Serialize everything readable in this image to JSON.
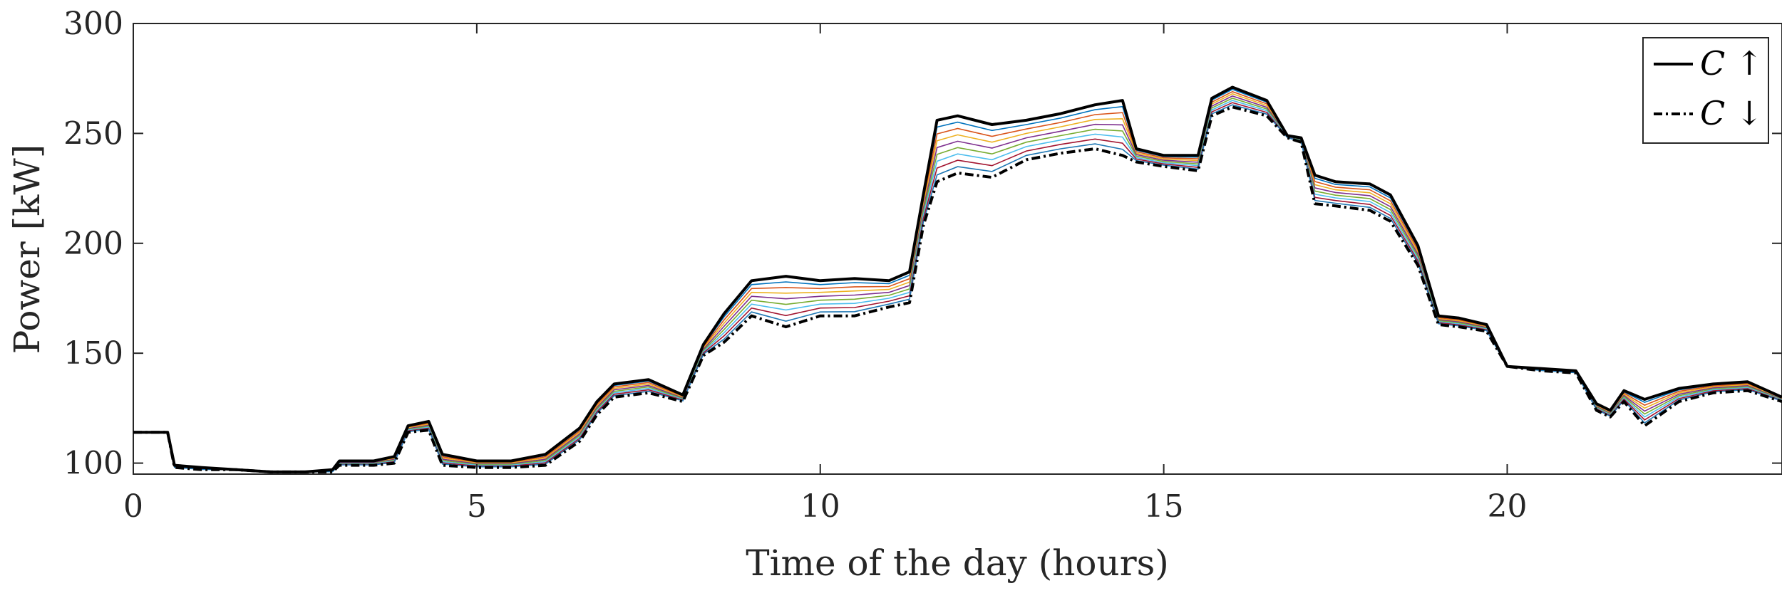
{
  "chart_data": {
    "type": "line",
    "title": "",
    "xlabel": "Time of the day (hours)",
    "ylabel": "Power [kW]",
    "xlim": [
      0,
      24
    ],
    "ylim": [
      95,
      300
    ],
    "xticks": [
      0,
      5,
      10,
      15,
      20
    ],
    "yticks": [
      100,
      150,
      200,
      250,
      300
    ],
    "grid": false,
    "legend_position": "top-right",
    "x": [
      0,
      0.5,
      0.6,
      1,
      1.5,
      2,
      2.5,
      2.9,
      3,
      3.5,
      3.8,
      4,
      4.3,
      4.5,
      5,
      5.5,
      6,
      6.5,
      6.75,
      7,
      7.5,
      8,
      8.3,
      8.6,
      9,
      9.5,
      10,
      10.5,
      11,
      11.3,
      11.5,
      11.7,
      12,
      12.5,
      13,
      13.5,
      14,
      14.4,
      14.6,
      15,
      15.5,
      15.7,
      16,
      16.5,
      16.8,
      17,
      17.2,
      17.5,
      18,
      18.3,
      18.7,
      19,
      19.3,
      19.7,
      20,
      20.5,
      21,
      21.3,
      21.5,
      21.7,
      22,
      22.5,
      23,
      23.5,
      24
    ],
    "series": [
      {
        "name": "C ↑",
        "style": "solid",
        "color": "#000000",
        "values": [
          114,
          114,
          99,
          98,
          97,
          96,
          96,
          97,
          101,
          101,
          103,
          117,
          119,
          104,
          101,
          101,
          104,
          116,
          128,
          136,
          138,
          131,
          154,
          168,
          183,
          185,
          183,
          184,
          183,
          187,
          222,
          256,
          258,
          254,
          256,
          259,
          263,
          265,
          243,
          240,
          240,
          266,
          271,
          265,
          249,
          248,
          231,
          228,
          227,
          222,
          199,
          167,
          166,
          163,
          144,
          143,
          142,
          127,
          124,
          133,
          129,
          134,
          136,
          137,
          130
        ],
        "description": "upper bound"
      },
      {
        "name": "C ↓",
        "style": "dashdot",
        "color": "#000000",
        "values": [
          114,
          114,
          98,
          97,
          97,
          96,
          96,
          96,
          99,
          99,
          100,
          114,
          115,
          99,
          98,
          98,
          99,
          110,
          122,
          130,
          132,
          128,
          149,
          155,
          167,
          162,
          167,
          167,
          171,
          173,
          208,
          228,
          232,
          230,
          238,
          241,
          243,
          240,
          237,
          235,
          233,
          258,
          262,
          258,
          248,
          246,
          218,
          217,
          215,
          210,
          190,
          163,
          162,
          160,
          144,
          142,
          141,
          124,
          121,
          128,
          117,
          128,
          132,
          133,
          128
        ],
        "description": "lower bound"
      }
    ],
    "intermediate_series_count": 8,
    "intermediate_colors": [
      "#0072BD",
      "#D95319",
      "#EDB120",
      "#7E2F8E",
      "#77AC30",
      "#4DBEEE",
      "#A2142F",
      "#1f77b4"
    ]
  }
}
